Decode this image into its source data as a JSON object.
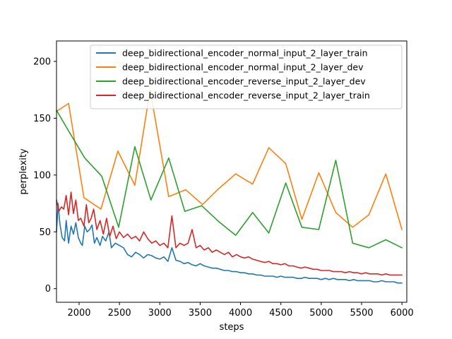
{
  "chart_data": {
    "type": "line",
    "xlabel": "steps",
    "ylabel": "perplexity",
    "xlim": [
      1720,
      6060
    ],
    "ylim": [
      -12,
      218
    ],
    "x_ticks": [
      2000,
      2500,
      3000,
      3500,
      4000,
      4500,
      5000,
      5500,
      6000
    ],
    "y_ticks": [
      0,
      50,
      100,
      150,
      200
    ],
    "grid": false,
    "legend_position": "top-right",
    "series": [
      {
        "name": "deep_bidirectional_encoder_normal_input_2_layer_train",
        "color": "#1f77b4",
        "noisy": true,
        "points": [
          [
            1720,
            50
          ],
          [
            1740,
            75
          ],
          [
            1760,
            58
          ],
          [
            1790,
            45
          ],
          [
            1820,
            42
          ],
          [
            1840,
            60
          ],
          [
            1870,
            40
          ],
          [
            1900,
            55
          ],
          [
            1930,
            48
          ],
          [
            1960,
            58
          ],
          [
            1990,
            45
          ],
          [
            2020,
            40
          ],
          [
            2040,
            38
          ],
          [
            2070,
            55
          ],
          [
            2100,
            50
          ],
          [
            2130,
            52
          ],
          [
            2160,
            56
          ],
          [
            2190,
            40
          ],
          [
            2220,
            45
          ],
          [
            2260,
            38
          ],
          [
            2290,
            46
          ],
          [
            2330,
            42
          ],
          [
            2370,
            50
          ],
          [
            2400,
            36
          ],
          [
            2450,
            40
          ],
          [
            2500,
            38
          ],
          [
            2550,
            36
          ],
          [
            2600,
            30
          ],
          [
            2650,
            28
          ],
          [
            2700,
            32
          ],
          [
            2750,
            30
          ],
          [
            2800,
            27
          ],
          [
            2850,
            30
          ],
          [
            2900,
            29
          ],
          [
            2950,
            27
          ],
          [
            3000,
            26
          ],
          [
            3050,
            28
          ],
          [
            3100,
            24
          ],
          [
            3150,
            36
          ],
          [
            3200,
            25
          ],
          [
            3250,
            24
          ],
          [
            3300,
            22
          ],
          [
            3350,
            23
          ],
          [
            3400,
            21
          ],
          [
            3450,
            20
          ],
          [
            3500,
            22
          ],
          [
            3550,
            20
          ],
          [
            3600,
            19
          ],
          [
            3650,
            18
          ],
          [
            3700,
            18
          ],
          [
            3750,
            17
          ],
          [
            3800,
            16
          ],
          [
            3850,
            16
          ],
          [
            3900,
            15
          ],
          [
            3950,
            15
          ],
          [
            4000,
            14
          ],
          [
            4050,
            14
          ],
          [
            4100,
            13
          ],
          [
            4150,
            13
          ],
          [
            4200,
            12
          ],
          [
            4250,
            12
          ],
          [
            4300,
            11
          ],
          [
            4350,
            11
          ],
          [
            4400,
            11
          ],
          [
            4450,
            10
          ],
          [
            4500,
            11
          ],
          [
            4550,
            10
          ],
          [
            4600,
            10
          ],
          [
            4650,
            10
          ],
          [
            4700,
            9
          ],
          [
            4750,
            9
          ],
          [
            4800,
            10
          ],
          [
            4850,
            9
          ],
          [
            4900,
            9
          ],
          [
            4950,
            9
          ],
          [
            5000,
            8
          ],
          [
            5050,
            9
          ],
          [
            5100,
            8
          ],
          [
            5150,
            9
          ],
          [
            5200,
            8
          ],
          [
            5250,
            8
          ],
          [
            5300,
            8
          ],
          [
            5350,
            7
          ],
          [
            5400,
            8
          ],
          [
            5450,
            7
          ],
          [
            5500,
            7
          ],
          [
            5550,
            7
          ],
          [
            5600,
            7
          ],
          [
            5650,
            6
          ],
          [
            5700,
            6
          ],
          [
            5750,
            7
          ],
          [
            5800,
            6
          ],
          [
            5850,
            6
          ],
          [
            5900,
            6
          ],
          [
            5950,
            5
          ],
          [
            6000,
            5
          ]
        ]
      },
      {
        "name": "deep_bidirectional_encoder_normal_input_2_layer_dev",
        "color": "#ff7f0e",
        "noisy": false,
        "points": [
          [
            1720,
            156
          ],
          [
            1870,
            163
          ],
          [
            2060,
            80
          ],
          [
            2270,
            70
          ],
          [
            2480,
            121
          ],
          [
            2690,
            91
          ],
          [
            2880,
            175
          ],
          [
            3110,
            81
          ],
          [
            3320,
            87
          ],
          [
            3530,
            74
          ],
          [
            3730,
            88
          ],
          [
            3940,
            101
          ],
          [
            4150,
            92
          ],
          [
            4350,
            124
          ],
          [
            4560,
            110
          ],
          [
            4760,
            61
          ],
          [
            4970,
            102
          ],
          [
            5180,
            67
          ],
          [
            5390,
            54
          ],
          [
            5590,
            65
          ],
          [
            5800,
            101
          ],
          [
            6000,
            52
          ]
        ]
      },
      {
        "name": "deep_bidirectional_encoder_reverse_input_2_layer_dev",
        "color": "#2ca02c",
        "noisy": false,
        "points": [
          [
            1720,
            157
          ],
          [
            1860,
            140
          ],
          [
            2070,
            115
          ],
          [
            2280,
            99
          ],
          [
            2490,
            54
          ],
          [
            2690,
            125
          ],
          [
            2890,
            78
          ],
          [
            3110,
            115
          ],
          [
            3310,
            68
          ],
          [
            3520,
            73
          ],
          [
            3730,
            59
          ],
          [
            3940,
            47
          ],
          [
            4150,
            67
          ],
          [
            4350,
            49
          ],
          [
            4560,
            93
          ],
          [
            4760,
            54
          ],
          [
            4970,
            52
          ],
          [
            5180,
            113
          ],
          [
            5390,
            40
          ],
          [
            5590,
            36
          ],
          [
            5800,
            43
          ],
          [
            6000,
            36
          ]
        ]
      },
      {
        "name": "deep_bidirectional_encoder_reverse_input_2_layer_train",
        "color": "#d62728",
        "noisy": true,
        "points": [
          [
            1720,
            78
          ],
          [
            1750,
            68
          ],
          [
            1780,
            72
          ],
          [
            1810,
            70
          ],
          [
            1840,
            82
          ],
          [
            1870,
            65
          ],
          [
            1900,
            85
          ],
          [
            1930,
            66
          ],
          [
            1960,
            78
          ],
          [
            1990,
            60
          ],
          [
            2020,
            62
          ],
          [
            2060,
            55
          ],
          [
            2090,
            74
          ],
          [
            2120,
            58
          ],
          [
            2150,
            62
          ],
          [
            2180,
            70
          ],
          [
            2220,
            52
          ],
          [
            2260,
            60
          ],
          [
            2300,
            48
          ],
          [
            2340,
            62
          ],
          [
            2380,
            46
          ],
          [
            2420,
            55
          ],
          [
            2460,
            44
          ],
          [
            2500,
            50
          ],
          [
            2550,
            45
          ],
          [
            2600,
            48
          ],
          [
            2650,
            44
          ],
          [
            2700,
            46
          ],
          [
            2750,
            42
          ],
          [
            2800,
            50
          ],
          [
            2850,
            44
          ],
          [
            2900,
            40
          ],
          [
            2950,
            42
          ],
          [
            3000,
            38
          ],
          [
            3050,
            40
          ],
          [
            3100,
            36
          ],
          [
            3150,
            64
          ],
          [
            3200,
            36
          ],
          [
            3250,
            40
          ],
          [
            3300,
            38
          ],
          [
            3350,
            40
          ],
          [
            3400,
            52
          ],
          [
            3450,
            36
          ],
          [
            3500,
            38
          ],
          [
            3550,
            34
          ],
          [
            3600,
            36
          ],
          [
            3650,
            32
          ],
          [
            3700,
            34
          ],
          [
            3750,
            32
          ],
          [
            3800,
            30
          ],
          [
            3850,
            32
          ],
          [
            3900,
            28
          ],
          [
            3950,
            30
          ],
          [
            4000,
            28
          ],
          [
            4050,
            27
          ],
          [
            4100,
            28
          ],
          [
            4150,
            26
          ],
          [
            4200,
            25
          ],
          [
            4250,
            24
          ],
          [
            4300,
            23
          ],
          [
            4350,
            24
          ],
          [
            4400,
            22
          ],
          [
            4450,
            22
          ],
          [
            4500,
            21
          ],
          [
            4550,
            22
          ],
          [
            4600,
            20
          ],
          [
            4650,
            20
          ],
          [
            4700,
            19
          ],
          [
            4750,
            18
          ],
          [
            4800,
            19
          ],
          [
            4850,
            18
          ],
          [
            4900,
            17
          ],
          [
            4950,
            17
          ],
          [
            5000,
            16
          ],
          [
            5050,
            16
          ],
          [
            5100,
            16
          ],
          [
            5150,
            15
          ],
          [
            5200,
            15
          ],
          [
            5250,
            15
          ],
          [
            5300,
            14
          ],
          [
            5350,
            15
          ],
          [
            5400,
            14
          ],
          [
            5450,
            14
          ],
          [
            5500,
            13
          ],
          [
            5550,
            14
          ],
          [
            5600,
            13
          ],
          [
            5650,
            13
          ],
          [
            5700,
            13
          ],
          [
            5750,
            12
          ],
          [
            5800,
            13
          ],
          [
            5850,
            12
          ],
          [
            5900,
            12
          ],
          [
            5950,
            12
          ],
          [
            6000,
            12
          ]
        ]
      }
    ]
  }
}
